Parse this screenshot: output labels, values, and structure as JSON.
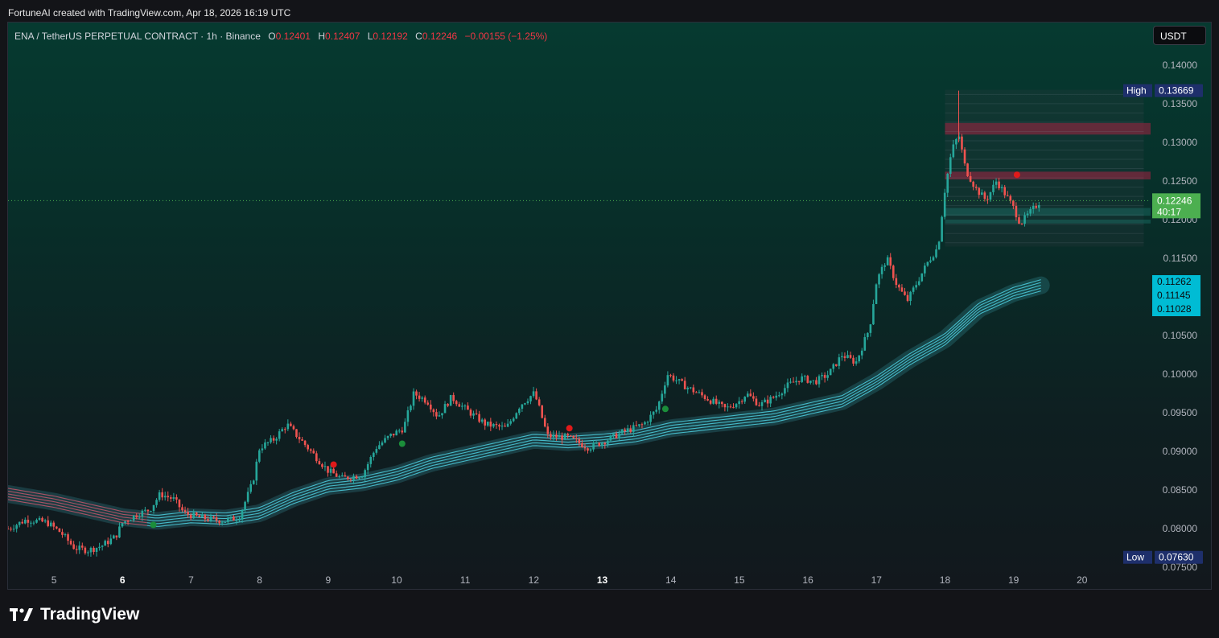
{
  "header": {
    "credit": "FortuneAI created with TradingView.com, Apr 18, 2026 16:19 UTC"
  },
  "legend": {
    "symbol": "ENA / TetherUS PERPETUAL CONTRACT · 1h · Binance",
    "o_label": "O",
    "o_value": "0.12401",
    "h_label": "H",
    "h_value": "0.12407",
    "l_label": "L",
    "l_value": "0.12192",
    "c_label": "C",
    "c_value": "0.12246",
    "change": "−0.00155 (−1.25%)"
  },
  "currency_button": "USDT",
  "brand": {
    "name": "TradingView"
  },
  "colors": {
    "up": "#26a69a",
    "down": "#ef5350",
    "ribbon": "#4dd0e1",
    "ribbon_red": "#c2566a",
    "last_price": "#4caf50",
    "marker_level": "#00bcd4",
    "high_low_tag": "#1e2f6b"
  },
  "chart_data": {
    "type": "candlestick",
    "ylim": [
      0.0745,
      0.1455
    ],
    "xlim": [
      4.33,
      21.0
    ],
    "x_ticks": [
      "5",
      "6",
      "7",
      "8",
      "9",
      "10",
      "11",
      "12",
      "13",
      "14",
      "15",
      "16",
      "17",
      "18",
      "19",
      "20"
    ],
    "y_ticks": [
      "0.14000",
      "0.13500",
      "0.13000",
      "0.12500",
      "0.12000",
      "0.11500",
      "0.10500",
      "0.10000",
      "0.09500",
      "0.09000",
      "0.08500",
      "0.08000",
      "0.07500"
    ],
    "close_path": [
      [
        4.33,
        0.08
      ],
      [
        4.6,
        0.0812
      ],
      [
        4.9,
        0.0808
      ],
      [
        5.1,
        0.0795
      ],
      [
        5.3,
        0.0775
      ],
      [
        5.5,
        0.0772
      ],
      [
        5.7,
        0.0778
      ],
      [
        5.9,
        0.079
      ],
      [
        6.0,
        0.0808
      ],
      [
        6.2,
        0.0818
      ],
      [
        6.4,
        0.0825
      ],
      [
        6.55,
        0.0845
      ],
      [
        6.75,
        0.0838
      ],
      [
        6.9,
        0.082
      ],
      [
        7.1,
        0.0815
      ],
      [
        7.3,
        0.0812
      ],
      [
        7.5,
        0.081
      ],
      [
        7.7,
        0.0815
      ],
      [
        7.9,
        0.086
      ],
      [
        8.0,
        0.0905
      ],
      [
        8.2,
        0.0915
      ],
      [
        8.4,
        0.0935
      ],
      [
        8.6,
        0.0915
      ],
      [
        8.8,
        0.0895
      ],
      [
        9.0,
        0.0875
      ],
      [
        9.2,
        0.0865
      ],
      [
        9.5,
        0.087
      ],
      [
        9.7,
        0.0905
      ],
      [
        9.9,
        0.092
      ],
      [
        10.1,
        0.093
      ],
      [
        10.25,
        0.0975
      ],
      [
        10.45,
        0.0965
      ],
      [
        10.6,
        0.0945
      ],
      [
        10.8,
        0.097
      ],
      [
        11.0,
        0.0955
      ],
      [
        11.3,
        0.0935
      ],
      [
        11.6,
        0.093
      ],
      [
        11.8,
        0.096
      ],
      [
        12.0,
        0.0975
      ],
      [
        12.05,
        0.0965
      ],
      [
        12.2,
        0.092
      ],
      [
        12.5,
        0.0918
      ],
      [
        12.8,
        0.0905
      ],
      [
        13.0,
        0.0912
      ],
      [
        13.3,
        0.0925
      ],
      [
        13.6,
        0.0935
      ],
      [
        13.8,
        0.0955
      ],
      [
        13.95,
        0.1
      ],
      [
        14.2,
        0.0985
      ],
      [
        14.4,
        0.0975
      ],
      [
        14.6,
        0.0965
      ],
      [
        14.8,
        0.0955
      ],
      [
        15.0,
        0.0965
      ],
      [
        15.1,
        0.0975
      ],
      [
        15.3,
        0.096
      ],
      [
        15.5,
        0.097
      ],
      [
        15.7,
        0.0985
      ],
      [
        15.9,
        0.0995
      ],
      [
        16.1,
        0.099
      ],
      [
        16.3,
        0.1
      ],
      [
        16.5,
        0.1025
      ],
      [
        16.7,
        0.1015
      ],
      [
        16.9,
        0.106
      ],
      [
        17.0,
        0.112
      ],
      [
        17.15,
        0.115
      ],
      [
        17.3,
        0.1115
      ],
      [
        17.45,
        0.1095
      ],
      [
        17.6,
        0.112
      ],
      [
        17.75,
        0.1145
      ],
      [
        17.9,
        0.1165
      ],
      [
        18.0,
        0.124
      ],
      [
        18.1,
        0.129
      ],
      [
        18.2,
        0.131
      ],
      [
        18.3,
        0.1265
      ],
      [
        18.45,
        0.124
      ],
      [
        18.6,
        0.1225
      ],
      [
        18.75,
        0.125
      ],
      [
        18.9,
        0.123
      ],
      [
        19.0,
        0.1215
      ],
      [
        19.1,
        0.1195
      ],
      [
        19.2,
        0.1205
      ],
      [
        19.3,
        0.1215
      ],
      [
        19.4,
        0.1225
      ]
    ],
    "high": 0.13669,
    "low": 0.0763,
    "last_price": 0.12246,
    "countdown": "40:17",
    "ribbon_levels": [
      "0.11262",
      "0.11145",
      "0.11028"
    ],
    "ribbon_mid": [
      [
        4.33,
        0.0845
      ],
      [
        5.0,
        0.0835
      ],
      [
        5.5,
        0.0825
      ],
      [
        6.0,
        0.0815
      ],
      [
        6.5,
        0.081
      ],
      [
        7.0,
        0.0815
      ],
      [
        7.5,
        0.0813
      ],
      [
        8.0,
        0.082
      ],
      [
        8.5,
        0.084
      ],
      [
        9.0,
        0.0855
      ],
      [
        9.5,
        0.086
      ],
      [
        10.0,
        0.087
      ],
      [
        10.5,
        0.0885
      ],
      [
        11.0,
        0.0895
      ],
      [
        11.5,
        0.0905
      ],
      [
        12.0,
        0.0915
      ],
      [
        12.5,
        0.0912
      ],
      [
        13.0,
        0.0915
      ],
      [
        13.5,
        0.092
      ],
      [
        14.0,
        0.093
      ],
      [
        14.5,
        0.0935
      ],
      [
        15.0,
        0.094
      ],
      [
        15.5,
        0.0945
      ],
      [
        16.0,
        0.0955
      ],
      [
        16.5,
        0.0965
      ],
      [
        17.0,
        0.099
      ],
      [
        17.5,
        0.102
      ],
      [
        18.0,
        0.1045
      ],
      [
        18.5,
        0.1085
      ],
      [
        19.0,
        0.1105
      ],
      [
        19.4,
        0.1115
      ]
    ],
    "ribbon_red_until": 6.35,
    "signals": [
      {
        "x": 6.45,
        "y": 0.0805,
        "type": "buy"
      },
      {
        "x": 9.08,
        "y": 0.0883,
        "type": "sell"
      },
      {
        "x": 10.08,
        "y": 0.091,
        "type": "buy"
      },
      {
        "x": 12.52,
        "y": 0.093,
        "type": "sell"
      },
      {
        "x": 13.92,
        "y": 0.0955,
        "type": "buy"
      },
      {
        "x": 19.05,
        "y": 0.1258,
        "type": "sell"
      }
    ],
    "zones": [
      {
        "x0": 18.0,
        "x1": 21.0,
        "y0": 0.131,
        "y1": 0.1325,
        "color": "red"
      },
      {
        "x0": 18.0,
        "x1": 21.0,
        "y0": 0.1252,
        "y1": 0.1262,
        "color": "red"
      },
      {
        "x0": 18.0,
        "x1": 21.0,
        "y0": 0.1205,
        "y1": 0.1215,
        "color": "teal"
      },
      {
        "x0": 18.0,
        "x1": 21.0,
        "y0": 0.1195,
        "y1": 0.12,
        "color": "teal"
      }
    ]
  }
}
